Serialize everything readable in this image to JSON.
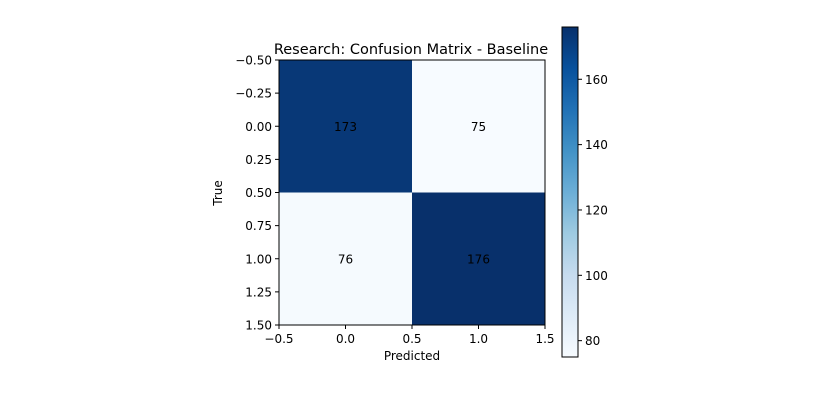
{
  "chart_data": {
    "type": "heatmap",
    "title": "Research: Confusion Matrix - Baseline",
    "xlabel": "Predicted",
    "ylabel": "True",
    "matrix": [
      [
        173,
        75
      ],
      [
        76,
        176
      ]
    ],
    "xlim": [
      -0.5,
      1.5
    ],
    "ylim": [
      1.5,
      -0.5
    ],
    "xticks": [
      "−0.5",
      "0.0",
      "0.5",
      "1.0",
      "1.5"
    ],
    "yticks": [
      "−0.50",
      "−0.25",
      "0.00",
      "0.25",
      "0.50",
      "0.75",
      "1.00",
      "1.25",
      "1.50"
    ],
    "colorbar": {
      "min": 75,
      "max": 176,
      "ticks": [
        "80",
        "100",
        "120",
        "140",
        "160"
      ],
      "colormap": "Blues",
      "color_low": "#f7fbff",
      "color_high": "#08306b"
    },
    "grid": false,
    "legend": "none"
  }
}
